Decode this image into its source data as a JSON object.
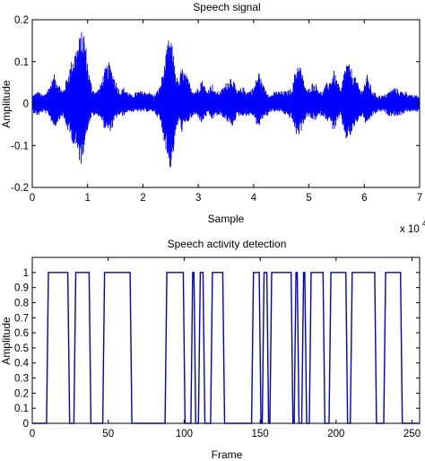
{
  "colors": {
    "signal": "#0000ff",
    "vad": "#0000cc",
    "axes": "#000000"
  },
  "chart_data": [
    {
      "type": "line",
      "title": "Speech signal",
      "xlabel": "Sample",
      "ylabel": "Amplitude",
      "x_multiplier_label": "x 10",
      "x_multiplier_exponent": "4",
      "xlim": [
        0,
        7
      ],
      "ylim": [
        -0.2,
        0.2
      ],
      "xticks": [
        "0",
        "1",
        "2",
        "3",
        "4",
        "5",
        "6",
        "7"
      ],
      "yticks": [
        "0.2",
        "0.1",
        "0",
        "-0.1",
        "-0.2"
      ],
      "xtick_values": [
        0,
        1,
        2,
        3,
        4,
        5,
        6,
        7
      ],
      "ytick_values": [
        0.2,
        0.1,
        0,
        -0.1,
        -0.2
      ],
      "envelope": {
        "x": [
          0.0,
          0.1,
          0.2,
          0.3,
          0.4,
          0.48,
          0.55,
          0.62,
          0.72,
          0.8,
          0.88,
          0.93,
          0.97,
          1.02,
          1.08,
          1.15,
          1.22,
          1.3,
          1.38,
          1.45,
          1.5,
          1.55,
          1.6,
          1.65,
          1.72,
          1.8,
          1.9,
          2.0,
          2.1,
          2.2,
          2.3,
          2.4,
          2.45,
          2.5,
          2.55,
          2.6,
          2.65,
          2.7,
          2.78,
          2.85,
          2.92,
          3.0,
          3.05,
          3.1,
          3.15,
          3.2,
          3.25,
          3.3,
          3.4,
          3.5,
          3.6,
          3.7,
          3.8,
          3.9,
          4.0,
          4.05,
          4.1,
          4.15,
          4.2,
          4.25,
          4.3,
          4.4,
          4.5,
          4.6,
          4.7,
          4.75,
          4.8,
          4.85,
          4.9,
          4.97,
          5.05,
          5.12,
          5.2,
          5.25,
          5.32,
          5.4,
          5.45,
          5.5,
          5.58,
          5.63,
          5.68,
          5.75,
          5.85,
          5.95,
          6.0,
          6.05,
          6.1,
          6.15,
          6.25,
          6.35,
          6.45,
          6.55,
          6.65,
          6.75,
          6.85,
          6.95,
          7.0
        ],
        "upper": [
          0.02,
          0.03,
          0.02,
          0.04,
          0.07,
          0.05,
          0.03,
          0.06,
          0.11,
          0.14,
          0.17,
          0.18,
          0.14,
          0.08,
          0.04,
          0.03,
          0.04,
          0.08,
          0.1,
          0.08,
          0.06,
          0.04,
          0.03,
          0.04,
          0.03,
          0.02,
          0.03,
          0.03,
          0.03,
          0.02,
          0.04,
          0.1,
          0.15,
          0.16,
          0.12,
          0.07,
          0.05,
          0.09,
          0.07,
          0.05,
          0.03,
          0.04,
          0.06,
          0.05,
          0.03,
          0.04,
          0.05,
          0.03,
          0.03,
          0.05,
          0.07,
          0.03,
          0.04,
          0.03,
          0.04,
          0.06,
          0.08,
          0.05,
          0.04,
          0.03,
          0.02,
          0.03,
          0.03,
          0.03,
          0.04,
          0.08,
          0.1,
          0.09,
          0.06,
          0.03,
          0.05,
          0.05,
          0.03,
          0.03,
          0.05,
          0.06,
          0.08,
          0.06,
          0.03,
          0.08,
          0.1,
          0.09,
          0.06,
          0.03,
          0.05,
          0.07,
          0.05,
          0.03,
          0.02,
          0.02,
          0.03,
          0.04,
          0.03,
          0.03,
          0.02,
          0.02,
          0.02
        ],
        "lower": [
          -0.02,
          -0.03,
          -0.02,
          -0.03,
          -0.06,
          -0.04,
          -0.03,
          -0.06,
          -0.09,
          -0.12,
          -0.15,
          -0.11,
          -0.08,
          -0.05,
          -0.03,
          -0.03,
          -0.03,
          -0.06,
          -0.07,
          -0.06,
          -0.04,
          -0.03,
          -0.03,
          -0.03,
          -0.02,
          -0.02,
          -0.02,
          -0.02,
          -0.02,
          -0.02,
          -0.04,
          -0.1,
          -0.14,
          -0.16,
          -0.12,
          -0.07,
          -0.04,
          -0.07,
          -0.05,
          -0.04,
          -0.03,
          -0.03,
          -0.05,
          -0.04,
          -0.03,
          -0.03,
          -0.04,
          -0.03,
          -0.03,
          -0.04,
          -0.06,
          -0.03,
          -0.03,
          -0.03,
          -0.03,
          -0.05,
          -0.06,
          -0.04,
          -0.03,
          -0.03,
          -0.02,
          -0.02,
          -0.02,
          -0.03,
          -0.04,
          -0.07,
          -0.08,
          -0.07,
          -0.05,
          -0.03,
          -0.04,
          -0.04,
          -0.03,
          -0.03,
          -0.04,
          -0.05,
          -0.07,
          -0.05,
          -0.03,
          -0.07,
          -0.09,
          -0.08,
          -0.05,
          -0.03,
          -0.04,
          -0.06,
          -0.04,
          -0.03,
          -0.02,
          -0.02,
          -0.03,
          -0.03,
          -0.03,
          -0.02,
          -0.02,
          -0.02,
          -0.02
        ]
      }
    },
    {
      "type": "line",
      "title": "Speech activity detection",
      "xlabel": "Frame",
      "ylabel": "Amplitude",
      "xlim": [
        0,
        255
      ],
      "ylim": [
        0,
        1.1
      ],
      "xticks": [
        "0",
        "50",
        "100",
        "150",
        "200",
        "250"
      ],
      "yticks": [
        "1",
        "0.9",
        "0.8",
        "0.7",
        "0.6",
        "0.5",
        "0.4",
        "0.3",
        "0.2",
        "0.1",
        "0"
      ],
      "xtick_values": [
        0,
        50,
        100,
        150,
        200,
        250
      ],
      "ytick_values": [
        1,
        0.9,
        0.8,
        0.7,
        0.6,
        0.5,
        0.4,
        0.3,
        0.2,
        0.1,
        0
      ],
      "segments": [
        [
          10,
          24
        ],
        [
          28,
          38
        ],
        [
          47,
          65
        ],
        [
          88,
          100
        ],
        [
          105,
          107
        ],
        [
          110,
          113
        ],
        [
          118,
          126
        ],
        [
          145,
          150
        ],
        [
          152,
          155
        ],
        [
          157,
          171
        ],
        [
          173,
          175
        ],
        [
          178,
          180
        ],
        [
          183,
          192
        ],
        [
          196,
          207
        ],
        [
          210,
          226
        ],
        [
          232,
          243
        ]
      ]
    }
  ]
}
